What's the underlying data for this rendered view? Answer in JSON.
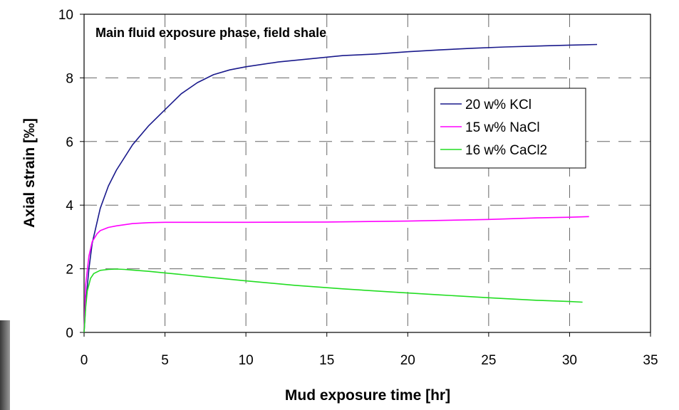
{
  "chart_data": {
    "type": "line",
    "title": "Main fluid exposure phase, field shale",
    "xlabel": "Mud exposure time [hr]",
    "ylabel": "Axial strain [‰]",
    "xlim": [
      0,
      35
    ],
    "ylim": [
      0,
      10
    ],
    "xticks": [
      0,
      5,
      10,
      15,
      20,
      25,
      30,
      35
    ],
    "yticks": [
      0,
      2,
      4,
      6,
      8,
      10
    ],
    "grid": "dashed",
    "legend_position": "right",
    "series": [
      {
        "name": "20 w% KCl",
        "color": "#1a1a8c",
        "x": [
          0,
          0.1,
          0.3,
          0.5,
          1,
          1.5,
          2,
          3,
          4,
          5,
          6,
          7,
          8,
          9,
          10,
          12,
          14,
          16,
          18,
          20,
          22,
          24,
          26,
          28,
          30,
          31.7
        ],
        "y": [
          0,
          0.9,
          2.0,
          2.8,
          3.9,
          4.6,
          5.1,
          5.9,
          6.5,
          7.0,
          7.5,
          7.85,
          8.1,
          8.25,
          8.35,
          8.5,
          8.6,
          8.7,
          8.75,
          8.82,
          8.88,
          8.93,
          8.97,
          9.0,
          9.03,
          9.05
        ]
      },
      {
        "name": "15 w% NaCl",
        "color": "#ff00ff",
        "x": [
          0,
          0.1,
          0.3,
          0.5,
          0.8,
          1,
          1.5,
          2,
          3,
          4,
          5,
          8,
          10,
          15,
          20,
          25,
          28,
          30,
          31.2
        ],
        "y": [
          0,
          1.5,
          2.4,
          2.85,
          3.1,
          3.2,
          3.3,
          3.35,
          3.42,
          3.45,
          3.46,
          3.46,
          3.46,
          3.47,
          3.5,
          3.55,
          3.6,
          3.62,
          3.64
        ]
      },
      {
        "name": "16 w% CaCl2",
        "color": "#22dd22",
        "x": [
          0,
          0.1,
          0.2,
          0.4,
          0.6,
          1,
          1.5,
          2,
          2.5,
          3,
          4,
          5,
          7,
          10,
          13,
          16,
          19,
          22,
          25,
          28,
          30,
          30.8
        ],
        "y": [
          0,
          0.8,
          1.3,
          1.7,
          1.85,
          1.95,
          1.98,
          1.99,
          1.98,
          1.96,
          1.92,
          1.87,
          1.77,
          1.62,
          1.48,
          1.37,
          1.27,
          1.18,
          1.09,
          1.01,
          0.97,
          0.95
        ]
      }
    ]
  }
}
